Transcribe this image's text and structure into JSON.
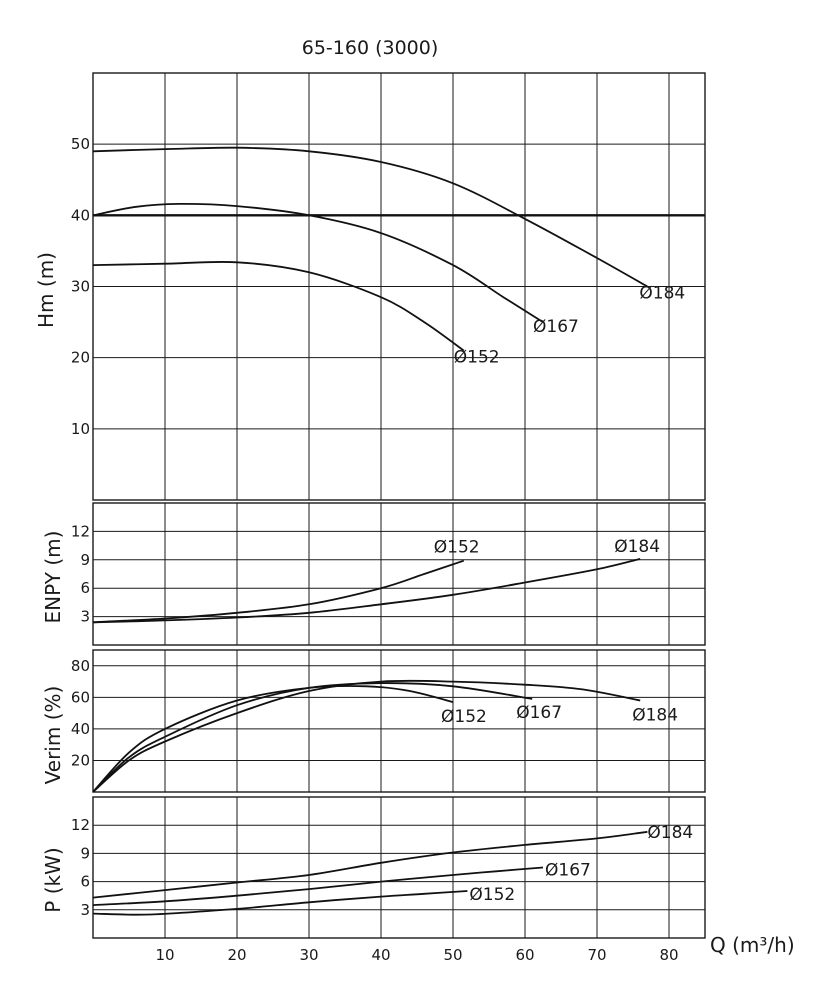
{
  "chart_data": {
    "title": "65-160 (3000)",
    "x_axis": {
      "label": "Q (m³/h)",
      "range": [
        0,
        85
      ],
      "ticks": [
        10,
        20,
        30,
        40,
        50,
        60,
        70,
        80
      ]
    },
    "panels": [
      {
        "id": "head",
        "type": "line",
        "ylabel": "Hm (m)",
        "ylim": [
          0,
          60
        ],
        "yticks": [
          10,
          20,
          30,
          40,
          50
        ],
        "grid": true,
        "reference_lines": [
          {
            "y": 40
          }
        ],
        "series": [
          {
            "name": "Ø184",
            "points": [
              [
                0,
                49
              ],
              [
                10,
                49.3
              ],
              [
                20,
                49.5
              ],
              [
                30,
                49
              ],
              [
                40,
                47.5
              ],
              [
                50,
                44.5
              ],
              [
                60,
                39.5
              ],
              [
                70,
                34
              ],
              [
                77,
                30
              ]
            ]
          },
          {
            "name": "Ø167",
            "points": [
              [
                0,
                40
              ],
              [
                6,
                41.2
              ],
              [
                12,
                41.6
              ],
              [
                20,
                41.3
              ],
              [
                30,
                40
              ],
              [
                40,
                37.5
              ],
              [
                50,
                33
              ],
              [
                57,
                28.5
              ],
              [
                62.5,
                25
              ]
            ]
          },
          {
            "name": "Ø152",
            "points": [
              [
                0,
                33
              ],
              [
                10,
                33.2
              ],
              [
                20,
                33.4
              ],
              [
                30,
                32
              ],
              [
                40,
                28.5
              ],
              [
                46,
                25
              ],
              [
                51.5,
                21
              ]
            ]
          }
        ]
      },
      {
        "id": "npsh",
        "type": "line",
        "ylabel": "ENPY (m)",
        "ylim": [
          0,
          15
        ],
        "yticks": [
          3,
          6,
          9,
          12
        ],
        "grid": true,
        "series": [
          {
            "name": "Ø152",
            "points": [
              [
                0,
                2.4
              ],
              [
                10,
                2.8
              ],
              [
                20,
                3.4
              ],
              [
                30,
                4.3
              ],
              [
                40,
                6
              ],
              [
                46,
                7.5
              ],
              [
                51.5,
                8.9
              ]
            ]
          },
          {
            "name": "Ø184",
            "points": [
              [
                0,
                2.4
              ],
              [
                10,
                2.6
              ],
              [
                20,
                2.9
              ],
              [
                30,
                3.4
              ],
              [
                40,
                4.3
              ],
              [
                50,
                5.3
              ],
              [
                60,
                6.6
              ],
              [
                70,
                8
              ],
              [
                76,
                9.1
              ]
            ]
          }
        ]
      },
      {
        "id": "efficiency",
        "type": "line",
        "ylabel": "Verim (%)",
        "ylim": [
          0,
          90
        ],
        "yticks": [
          20,
          40,
          60,
          80
        ],
        "grid": true,
        "series": [
          {
            "name": "Ø152",
            "points": [
              [
                0,
                0
              ],
              [
                5,
                25
              ],
              [
                10,
                40
              ],
              [
                20,
                58
              ],
              [
                30,
                66
              ],
              [
                38,
                67
              ],
              [
                44,
                64
              ],
              [
                50,
                57
              ]
            ]
          },
          {
            "name": "Ø167",
            "points": [
              [
                0,
                0
              ],
              [
                5,
                22
              ],
              [
                10,
                35
              ],
              [
                20,
                55
              ],
              [
                30,
                66
              ],
              [
                40,
                69
              ],
              [
                50,
                67
              ],
              [
                61,
                59
              ]
            ]
          },
          {
            "name": "Ø184",
            "points": [
              [
                0,
                0
              ],
              [
                5,
                20
              ],
              [
                10,
                32
              ],
              [
                20,
                50
              ],
              [
                30,
                64
              ],
              [
                40,
                70
              ],
              [
                50,
                70
              ],
              [
                60,
                68
              ],
              [
                68,
                65
              ],
              [
                76,
                58
              ]
            ]
          }
        ]
      },
      {
        "id": "power",
        "type": "line",
        "ylabel": "P (kW)",
        "ylim": [
          0,
          15
        ],
        "yticks": [
          3,
          6,
          9,
          12
        ],
        "grid": true,
        "series": [
          {
            "name": "Ø184",
            "points": [
              [
                0,
                4.3
              ],
              [
                10,
                5.1
              ],
              [
                20,
                5.9
              ],
              [
                30,
                6.7
              ],
              [
                40,
                8
              ],
              [
                50,
                9.1
              ],
              [
                60,
                9.9
              ],
              [
                70,
                10.6
              ],
              [
                77,
                11.3
              ]
            ]
          },
          {
            "name": "Ø167",
            "points": [
              [
                0,
                3.5
              ],
              [
                10,
                3.9
              ],
              [
                20,
                4.5
              ],
              [
                30,
                5.2
              ],
              [
                40,
                6
              ],
              [
                50,
                6.7
              ],
              [
                56,
                7.1
              ],
              [
                62.5,
                7.5
              ]
            ]
          },
          {
            "name": "Ø152",
            "points": [
              [
                0,
                2.6
              ],
              [
                8,
                2.5
              ],
              [
                20,
                3.1
              ],
              [
                30,
                3.8
              ],
              [
                40,
                4.4
              ],
              [
                46,
                4.7
              ],
              [
                52,
                5
              ]
            ]
          }
        ]
      }
    ]
  }
}
